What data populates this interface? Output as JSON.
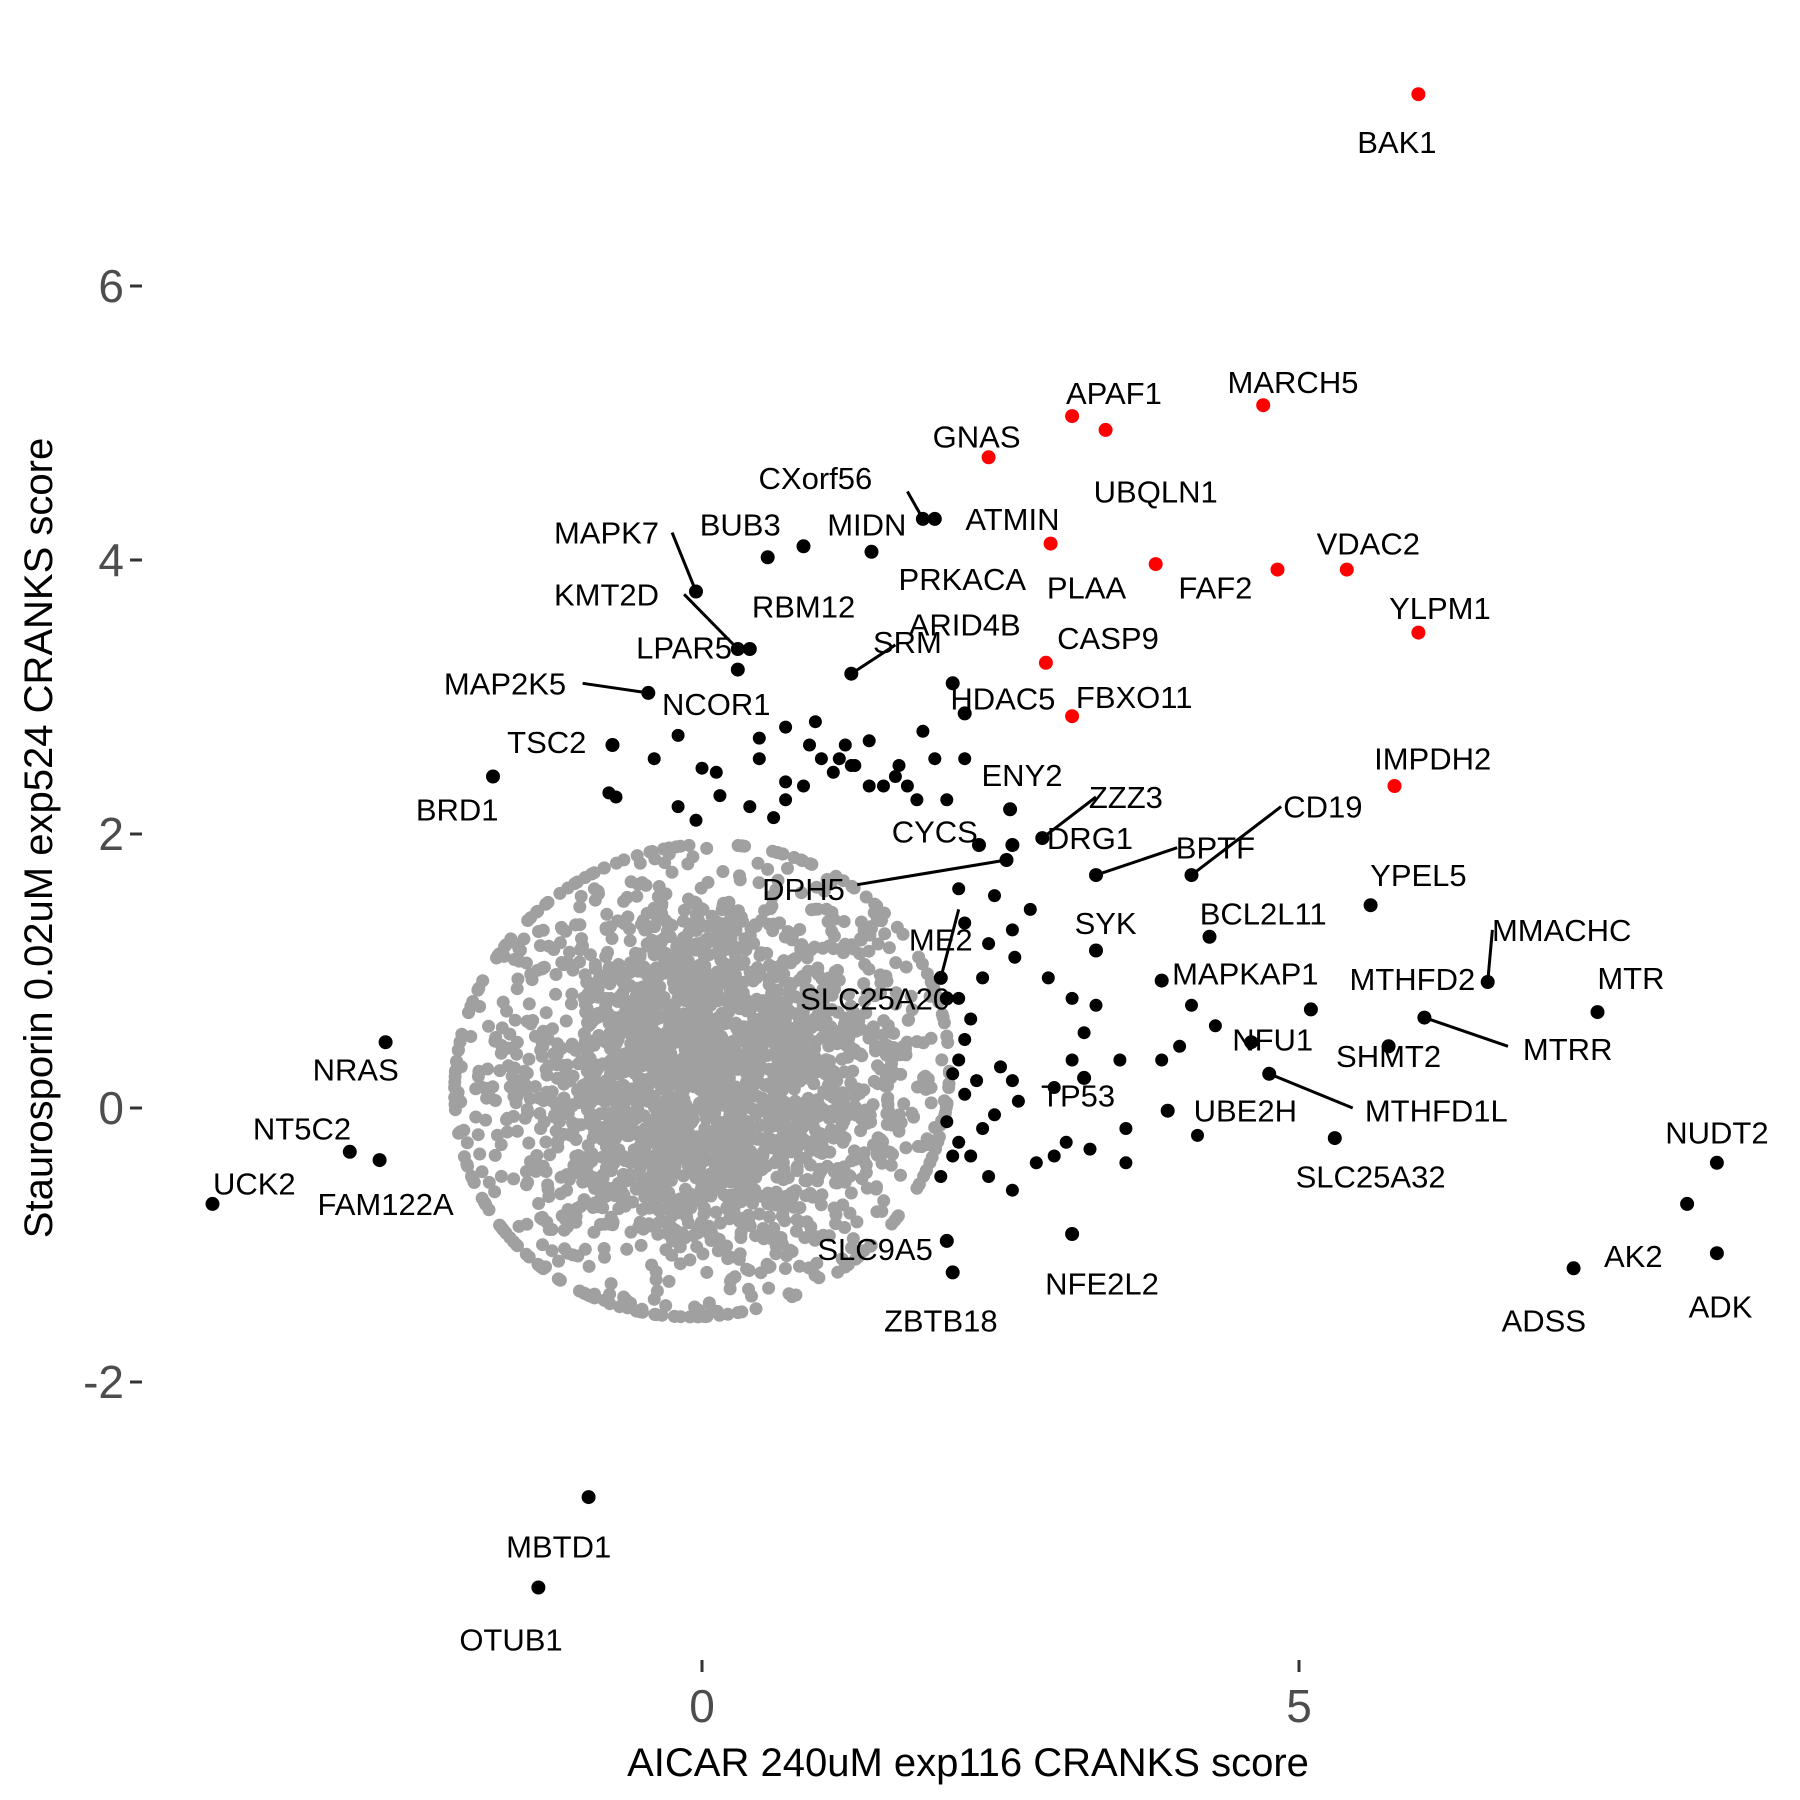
{
  "chart_data": {
    "type": "scatter",
    "xlabel": "AICAR 240uM exp116 CRANKS score",
    "ylabel": "Staurosporin 0.02uM exp524 CRANKS score",
    "xlim": [
      -4.2,
      8.8
    ],
    "ylim": [
      -3.9,
      7.6
    ],
    "x_ticks": [
      0,
      5
    ],
    "y_ticks": [
      -2,
      0,
      2,
      4,
      6
    ],
    "grid": false,
    "legend": "none",
    "colors": {
      "background": "#ffffff",
      "other": "#a0a0a0",
      "hit": "#000000",
      "top_hit": "#ff0000",
      "tick_text": "#4d4d4d"
    },
    "background_cloud": {
      "color": "#a0a0a0",
      "center": [
        0,
        0.2
      ],
      "count": 2600,
      "spread": [
        0.9,
        0.75
      ]
    },
    "highlight_points": [
      {
        "label": "BAK1",
        "x": 6.0,
        "y": 7.4,
        "color": "#ff0000",
        "lx": 5.82,
        "ly": 7.05
      },
      {
        "label": "MARCH5",
        "x": 4.7,
        "y": 5.13,
        "color": "#ff0000",
        "lx": 4.95,
        "ly": 5.3
      },
      {
        "label": "APAF1",
        "x": 3.1,
        "y": 5.05,
        "color": "#ff0000",
        "lx": 3.45,
        "ly": 5.22
      },
      {
        "label": "UBQLN1",
        "x": 3.38,
        "y": 4.95,
        "color": "#ff0000",
        "lx": 3.8,
        "ly": 4.5
      },
      {
        "label": "GNAS",
        "x": 2.4,
        "y": 4.75,
        "color": "#ff0000",
        "lx": 2.3,
        "ly": 4.9
      },
      {
        "label": "ATMIN",
        "x": 2.92,
        "y": 4.12,
        "color": "#ff0000",
        "lx": 2.6,
        "ly": 4.3
      },
      {
        "label": "PLAA",
        "x": 3.8,
        "y": 3.97,
        "color": "#ff0000",
        "lx": 3.22,
        "ly": 3.8
      },
      {
        "label": "FAF2",
        "x": 4.82,
        "y": 3.93,
        "color": "#ff0000",
        "lx": 4.3,
        "ly": 3.8
      },
      {
        "label": "VDAC2",
        "x": 5.4,
        "y": 3.93,
        "color": "#ff0000",
        "lx": 5.58,
        "ly": 4.12
      },
      {
        "label": "YLPM1",
        "x": 6.0,
        "y": 3.47,
        "color": "#ff0000",
        "lx": 6.18,
        "ly": 3.65
      },
      {
        "label": "CASP9",
        "x": 2.88,
        "y": 3.25,
        "color": "#ff0000",
        "lx": 3.4,
        "ly": 3.43
      },
      {
        "label": "FBXO11",
        "x": 3.1,
        "y": 2.86,
        "color": "#ff0000",
        "lx": 3.62,
        "ly": 3.0
      },
      {
        "label": "IMPDH2",
        "x": 5.8,
        "y": 2.35,
        "color": "#ff0000",
        "lx": 6.12,
        "ly": 2.55
      },
      {
        "label": "CXorf56",
        "x": 1.85,
        "y": 4.3,
        "color": "#000000",
        "lx": 0.95,
        "ly": 4.6,
        "lineX": 1.72,
        "lineY": 4.5
      },
      {
        "label": "MIDN",
        "x": 1.95,
        "y": 4.3,
        "color": "#000000",
        "lx": 1.38,
        "ly": 4.26
      },
      {
        "label": "BUB3",
        "x": 0.85,
        "y": 4.1,
        "color": "#000000",
        "lx": 0.32,
        "ly": 4.26
      },
      {
        "label": "RBM12",
        "x": 0.55,
        "y": 4.02,
        "color": "#000000",
        "lx": 0.85,
        "ly": 3.66
      },
      {
        "label": "PRKACA",
        "x": 1.42,
        "y": 4.06,
        "color": "#000000",
        "lx": 2.18,
        "ly": 3.86
      },
      {
        "label": "MAPK7",
        "x": -0.05,
        "y": 3.77,
        "color": "#000000",
        "lx": -0.8,
        "ly": 4.2,
        "lineX": -0.25,
        "lineY": 4.2
      },
      {
        "label": "KMT2D",
        "x": 0.3,
        "y": 3.35,
        "color": "#000000",
        "lx": -0.8,
        "ly": 3.75,
        "lineX": -0.15,
        "lineY": 3.75
      },
      {
        "label": "LPAR5",
        "x": 0.4,
        "y": 3.35,
        "color": "#000000",
        "lx": -0.15,
        "ly": 3.36
      },
      {
        "label": "SRM",
        "x": 1.25,
        "y": 3.17,
        "color": "#000000",
        "lx": 1.72,
        "ly": 3.4,
        "lineX": 1.62,
        "lineY": 3.38
      },
      {
        "label": "ARID4B",
        "x": 2.1,
        "y": 3.1,
        "color": "#000000",
        "lx": 2.2,
        "ly": 3.53
      },
      {
        "label": "MAP2K5",
        "x": -0.45,
        "y": 3.03,
        "color": "#000000",
        "lx": -1.65,
        "ly": 3.1,
        "lineX": -1.0,
        "lineY": 3.1
      },
      {
        "label": "NCOR1",
        "x": 0.3,
        "y": 3.2,
        "color": "#000000",
        "lx": 0.12,
        "ly": 2.95
      },
      {
        "label": "HDAC5",
        "x": 2.2,
        "y": 2.88,
        "color": "#000000",
        "lx": 2.52,
        "ly": 2.99
      },
      {
        "label": "TSC2",
        "x": -0.75,
        "y": 2.65,
        "color": "#000000",
        "lx": -1.3,
        "ly": 2.67
      },
      {
        "label": "BRD1",
        "x": -1.75,
        "y": 2.42,
        "color": "#000000",
        "lx": -2.05,
        "ly": 2.18
      },
      {
        "label": "ENY2",
        "x": 2.58,
        "y": 2.18,
        "color": "#000000",
        "lx": 2.68,
        "ly": 2.43
      },
      {
        "label": "ZZZ3",
        "x": 2.85,
        "y": 1.97,
        "color": "#000000",
        "lx": 3.55,
        "ly": 2.27,
        "lineX": 3.3,
        "lineY": 2.27
      },
      {
        "label": "DRG1",
        "x": 2.6,
        "y": 1.92,
        "color": "#000000",
        "lx": 3.25,
        "ly": 1.97
      },
      {
        "label": "CYCS",
        "x": 2.32,
        "y": 1.92,
        "color": "#000000",
        "lx": 1.95,
        "ly": 2.02
      },
      {
        "label": "CD19",
        "x": 4.1,
        "y": 1.7,
        "color": "#000000",
        "lx": 5.2,
        "ly": 2.2,
        "lineX": 4.85,
        "lineY": 2.2
      },
      {
        "label": "BPTF",
        "x": 3.3,
        "y": 1.7,
        "color": "#000000",
        "lx": 4.3,
        "ly": 1.9,
        "lineX": 3.98,
        "lineY": 1.9
      },
      {
        "label": "DPH5",
        "x": 2.55,
        "y": 1.81,
        "color": "#000000",
        "lx": 0.85,
        "ly": 1.6,
        "lineX": 1.3,
        "lineY": 1.63
      },
      {
        "label": "YPEL5",
        "x": 5.6,
        "y": 1.48,
        "color": "#000000",
        "lx": 6.0,
        "ly": 1.7
      },
      {
        "label": "BCL2L11",
        "x": 4.25,
        "y": 1.25,
        "color": "#000000",
        "lx": 4.7,
        "ly": 1.42
      },
      {
        "label": "SYK",
        "x": 3.3,
        "y": 1.15,
        "color": "#000000",
        "lx": 3.38,
        "ly": 1.35
      },
      {
        "label": "MMACHC",
        "x": 6.58,
        "y": 0.92,
        "color": "#000000",
        "lx": 7.2,
        "ly": 1.3,
        "lineX": 6.62,
        "lineY": 1.3
      },
      {
        "label": "ME2",
        "x": 2.0,
        "y": 0.95,
        "color": "#000000",
        "lx": 2.0,
        "ly": 1.23,
        "lineX": 2.15,
        "lineY": 1.45
      },
      {
        "label": "MTR",
        "x": 7.5,
        "y": 0.7,
        "color": "#000000",
        "lx": 7.78,
        "ly": 0.95
      },
      {
        "label": "MTHFD2",
        "x": 5.1,
        "y": 0.72,
        "color": "#000000",
        "lx": 5.95,
        "ly": 0.94
      },
      {
        "label": "MAPKAP1",
        "x": 3.85,
        "y": 0.93,
        "color": "#000000",
        "lx": 4.55,
        "ly": 0.98
      },
      {
        "label": "SLC25A20",
        "x": 2.05,
        "y": 0.8,
        "color": "#000000",
        "lx": 1.45,
        "ly": 0.8
      },
      {
        "label": "MTRR",
        "x": 6.05,
        "y": 0.66,
        "color": "#000000",
        "lx": 7.25,
        "ly": 0.43,
        "lineX": 6.75,
        "lineY": 0.45
      },
      {
        "label": "NFU1",
        "x": 4.6,
        "y": 0.48,
        "color": "#000000",
        "lx": 4.78,
        "ly": 0.5
      },
      {
        "label": "SHMT2",
        "x": 5.75,
        "y": 0.45,
        "color": "#000000",
        "lx": 5.75,
        "ly": 0.38
      },
      {
        "label": "NRAS",
        "x": -2.65,
        "y": 0.48,
        "color": "#000000",
        "lx": -2.9,
        "ly": 0.28
      },
      {
        "label": "TP53",
        "x": 3.2,
        "y": 0.22,
        "color": "#000000",
        "lx": 3.15,
        "ly": 0.09
      },
      {
        "label": "MTHFD1L",
        "x": 4.75,
        "y": 0.25,
        "color": "#000000",
        "lx": 6.15,
        "ly": -0.02,
        "lineX": 5.45,
        "lineY": 0.0
      },
      {
        "label": "UBE2H",
        "x": 3.9,
        "y": -0.02,
        "color": "#000000",
        "lx": 4.55,
        "ly": -0.02
      },
      {
        "label": "NT5C2",
        "x": -2.95,
        "y": -0.32,
        "color": "#000000",
        "lx": -3.35,
        "ly": -0.15
      },
      {
        "label": "FAM122A",
        "x": -2.7,
        "y": -0.38,
        "color": "#000000",
        "lx": -2.65,
        "ly": -0.7
      },
      {
        "label": "UCK2",
        "x": -4.1,
        "y": -0.7,
        "color": "#000000",
        "lx": -3.75,
        "ly": -0.55
      },
      {
        "label": "SLC25A32",
        "x": 5.3,
        "y": -0.22,
        "color": "#000000",
        "lx": 5.6,
        "ly": -0.5
      },
      {
        "label": "NUDT2",
        "x": 8.5,
        "y": -0.4,
        "color": "#000000",
        "lx": 8.5,
        "ly": -0.18
      },
      {
        "label": "AK2",
        "x": 8.25,
        "y": -0.7,
        "color": "#000000",
        "lx": 7.8,
        "ly": -1.08
      },
      {
        "label": "ADSS",
        "x": 7.3,
        "y": -1.17,
        "color": "#000000",
        "lx": 7.05,
        "ly": -1.55
      },
      {
        "label": "ADK",
        "x": 8.5,
        "y": -1.06,
        "color": "#000000",
        "lx": 8.53,
        "ly": -1.45
      },
      {
        "label": "NFE2L2",
        "x": 3.1,
        "y": -0.92,
        "color": "#000000",
        "lx": 3.35,
        "ly": -1.28
      },
      {
        "label": "SLC9A5",
        "x": 2.05,
        "y": -0.97,
        "color": "#000000",
        "lx": 1.45,
        "ly": -1.03
      },
      {
        "label": "ZBTB18",
        "x": 2.1,
        "y": -1.2,
        "color": "#000000",
        "lx": 2.0,
        "ly": -1.55
      },
      {
        "label": "MBTD1",
        "x": -0.95,
        "y": -2.84,
        "color": "#000000",
        "lx": -1.2,
        "ly": -3.2
      },
      {
        "label": "OTUB1",
        "x": -1.37,
        "y": -3.5,
        "color": "#000000",
        "lx": -1.6,
        "ly": -3.88
      }
    ],
    "unlabeled_hits": [
      [
        -0.2,
        2.72
      ],
      [
        -0.4,
        2.55
      ],
      [
        0.0,
        2.48
      ],
      [
        0.48,
        2.7
      ],
      [
        0.48,
        2.55
      ],
      [
        0.7,
        2.78
      ],
      [
        0.95,
        2.82
      ],
      [
        1.2,
        2.65
      ],
      [
        1.28,
        2.5
      ],
      [
        1.62,
        2.42
      ],
      [
        1.72,
        2.35
      ],
      [
        1.8,
        2.25
      ],
      [
        1.85,
        2.75
      ],
      [
        1.95,
        2.55
      ],
      [
        0.7,
        2.38
      ],
      [
        0.85,
        2.35
      ],
      [
        1.1,
        2.45
      ],
      [
        1.15,
        2.55
      ],
      [
        1.4,
        2.68
      ],
      [
        0.12,
        2.45
      ],
      [
        0.4,
        2.2
      ],
      [
        0.7,
        2.25
      ],
      [
        1.0,
        2.55
      ],
      [
        1.52,
        2.35
      ],
      [
        -0.72,
        2.27
      ],
      [
        -0.78,
        2.3
      ],
      [
        -0.2,
        2.2
      ],
      [
        -0.05,
        2.1
      ],
      [
        0.15,
        2.28
      ],
      [
        0.6,
        2.12
      ],
      [
        0.9,
        2.65
      ],
      [
        1.25,
        2.5
      ],
      [
        1.4,
        2.35
      ],
      [
        2.05,
        2.25
      ],
      [
        2.2,
        2.55
      ],
      [
        1.65,
        2.5
      ],
      [
        2.15,
        1.6
      ],
      [
        2.45,
        1.55
      ],
      [
        2.75,
        1.45
      ],
      [
        2.6,
        1.3
      ],
      [
        2.2,
        1.35
      ],
      [
        2.4,
        1.2
      ],
      [
        2.62,
        1.1
      ],
      [
        2.35,
        0.95
      ],
      [
        2.15,
        0.8
      ],
      [
        2.25,
        0.65
      ],
      [
        2.2,
        0.5
      ],
      [
        2.15,
        0.35
      ],
      [
        2.1,
        0.25
      ],
      [
        2.2,
        0.1
      ],
      [
        2.05,
        -0.1
      ],
      [
        2.15,
        -0.25
      ],
      [
        2.25,
        -0.35
      ],
      [
        2.4,
        -0.5
      ],
      [
        2.6,
        -0.6
      ],
      [
        2.8,
        -0.4
      ],
      [
        2.95,
        -0.35
      ],
      [
        3.05,
        -0.25
      ],
      [
        3.25,
        -0.3
      ],
      [
        3.55,
        -0.15
      ],
      [
        3.55,
        -0.4
      ],
      [
        2.9,
        0.95
      ],
      [
        3.1,
        0.8
      ],
      [
        3.3,
        0.75
      ],
      [
        3.2,
        0.55
      ],
      [
        3.1,
        0.35
      ],
      [
        2.95,
        0.15
      ],
      [
        3.5,
        0.35
      ],
      [
        3.85,
        0.35
      ],
      [
        4.0,
        0.45
      ],
      [
        4.1,
        0.75
      ],
      [
        4.3,
        0.6
      ],
      [
        4.15,
        -0.2
      ],
      [
        2.5,
        0.3
      ],
      [
        2.6,
        0.2
      ],
      [
        2.3,
        0.2
      ],
      [
        2.35,
        -0.15
      ],
      [
        2.45,
        -0.05
      ],
      [
        2.65,
        0.05
      ],
      [
        2.0,
        -0.5
      ],
      [
        2.1,
        -0.35
      ]
    ]
  }
}
